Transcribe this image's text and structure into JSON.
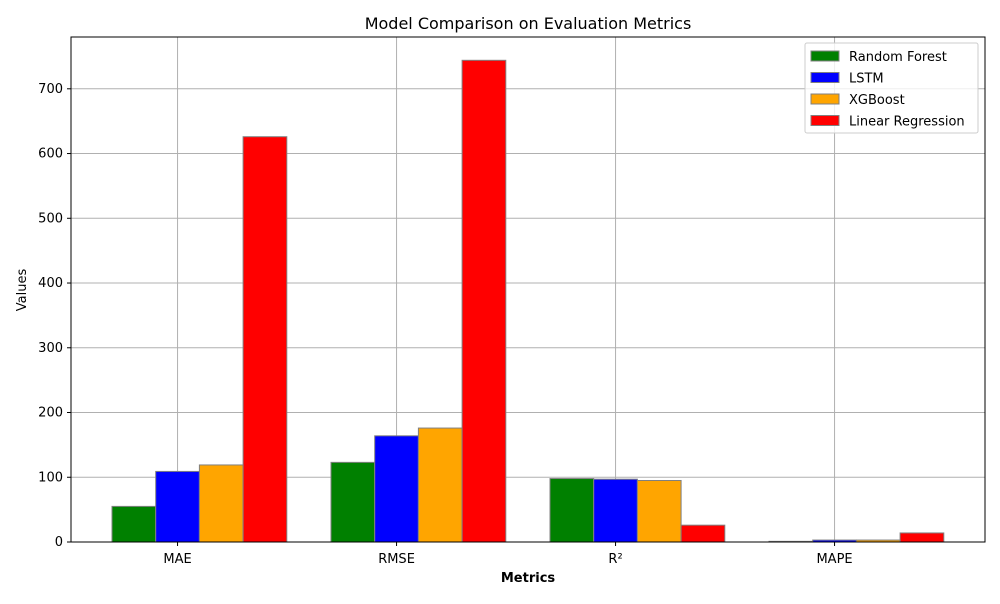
{
  "chart_data": {
    "type": "bar",
    "title": "Model Comparison on Evaluation Metrics",
    "xlabel": "Metrics",
    "ylabel": "Values",
    "categories": [
      "MAE",
      "RMSE",
      "R²",
      "MAPE"
    ],
    "ylim": [
      0,
      780
    ],
    "yticks": [
      0,
      100,
      200,
      300,
      400,
      500,
      600,
      700
    ],
    "grid": true,
    "legend_position": "top-right",
    "series": [
      {
        "name": "Random Forest",
        "color": "#008000",
        "values": [
          55,
          123,
          98,
          1
        ]
      },
      {
        "name": "LSTM",
        "color": "#0000ff",
        "values": [
          109,
          164,
          97,
          3
        ]
      },
      {
        "name": "XGBoost",
        "color": "#ffa500",
        "values": [
          119,
          176,
          95,
          3
        ]
      },
      {
        "name": "Linear Regression",
        "color": "#ff0000",
        "values": [
          626,
          744,
          26,
          14
        ]
      }
    ]
  }
}
